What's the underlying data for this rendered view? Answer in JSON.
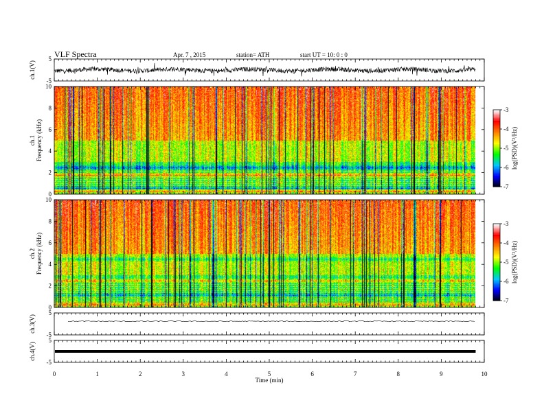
{
  "header": {
    "title": "VLF  Spectra",
    "date": "Apr. 7  , 2015",
    "station": "station= ATH",
    "start": "start  UT  =    10: 0   : 0"
  },
  "chart_data": [
    {
      "type": "line",
      "panel": "ch1-waveform",
      "ylabel": "ch.1(V)",
      "ylim": [
        -5,
        5
      ],
      "yticks": [
        "5",
        "-5"
      ],
      "x_range_min": [
        0,
        9.8
      ],
      "approx_level": 0,
      "approx_amplitude": 1.5
    },
    {
      "type": "heatmap",
      "panel": "ch1-spectrogram",
      "ylabel": "ch.1\nFrequency (kHz)",
      "ylim": [
        0,
        10
      ],
      "yticks": [
        "0",
        "2",
        "4",
        "6",
        "8",
        "10"
      ],
      "colorbar": {
        "label": "log(PSD)(V²/Hz)",
        "range": [
          -7,
          -3
        ],
        "ticks": [
          "-3",
          "-4",
          "-5",
          "-6",
          "-7"
        ]
      },
      "description_bands_khz": [
        0.3,
        0.6,
        1.8,
        2.5
      ]
    },
    {
      "type": "heatmap",
      "panel": "ch2-spectrogram",
      "ylabel": "ch.2\nFrequency (kHz)",
      "ylim": [
        0,
        10
      ],
      "yticks": [
        "0",
        "2",
        "4",
        "6",
        "8",
        "10"
      ],
      "colorbar": {
        "label": "log(PSD)(V²/Hz)",
        "range": [
          -7,
          -3
        ],
        "ticks": [
          "-3",
          "-4",
          "-5",
          "-6",
          "-7"
        ]
      },
      "description_bands_khz": [
        0.3,
        1.2,
        2.5,
        4.5
      ]
    },
    {
      "type": "line",
      "panel": "ch3-waveform",
      "ylabel": "ch.3(V)",
      "ylim": [
        -5,
        5
      ],
      "yticks": [
        "5",
        "-5"
      ],
      "approx_level": 1.2
    },
    {
      "type": "line",
      "panel": "ch4-waveform",
      "ylabel": "ch.4(V)",
      "ylim": [
        -5,
        5
      ],
      "yticks": [
        "5",
        "-5"
      ],
      "approx_level": 0
    }
  ],
  "xaxis": {
    "label": "Time  (min)",
    "range": [
      0,
      10
    ],
    "ticks": [
      "0",
      "1",
      "2",
      "3",
      "4",
      "5",
      "6",
      "7",
      "8",
      "9",
      "10"
    ]
  },
  "colors": {
    "background": "#ffffff",
    "colormap": [
      "#000000",
      "#0000ff",
      "#00c8ff",
      "#00ff00",
      "#ffff00",
      "#ff8000",
      "#ff0000",
      "#ffffff"
    ]
  }
}
